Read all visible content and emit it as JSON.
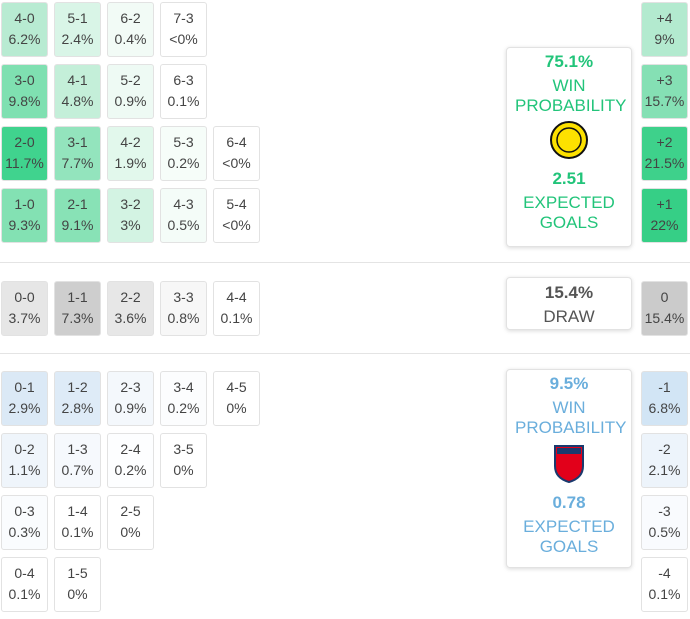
{
  "home": {
    "rows": [
      [
        {
          "score": "4-0",
          "prob": "6.2%",
          "color": "#b8ebd2"
        },
        {
          "score": "5-1",
          "prob": "2.4%",
          "color": "#d9f5e7"
        },
        {
          "score": "6-2",
          "prob": "0.4%",
          "color": "#f2fbf6"
        },
        {
          "score": "7-3",
          "prob": "<0%",
          "color": "#ffffff"
        }
      ],
      [
        {
          "score": "3-0",
          "prob": "9.8%",
          "color": "#7fe0b1"
        },
        {
          "score": "4-1",
          "prob": "4.8%",
          "color": "#c4efd9"
        },
        {
          "score": "5-2",
          "prob": "0.9%",
          "color": "#eefaf4"
        },
        {
          "score": "6-3",
          "prob": "0.1%",
          "color": "#ffffff"
        }
      ],
      [
        {
          "score": "2-0",
          "prob": "11.7%",
          "color": "#40d38e"
        },
        {
          "score": "3-1",
          "prob": "7.7%",
          "color": "#93e4bd"
        },
        {
          "score": "4-2",
          "prob": "1.9%",
          "color": "#e2f8ec"
        },
        {
          "score": "5-3",
          "prob": "0.2%",
          "color": "#f6fdf9"
        },
        {
          "score": "6-4",
          "prob": "<0%",
          "color": "#ffffff"
        }
      ],
      [
        {
          "score": "1-0",
          "prob": "9.3%",
          "color": "#83e1b3"
        },
        {
          "score": "2-1",
          "prob": "9.1%",
          "color": "#88e2b6"
        },
        {
          "score": "3-2",
          "prob": "3%",
          "color": "#d3f3e3"
        },
        {
          "score": "4-3",
          "prob": "0.5%",
          "color": "#f4fcf8"
        },
        {
          "score": "5-4",
          "prob": "<0%",
          "color": "#ffffff"
        }
      ]
    ],
    "margins": [
      {
        "label": "+4",
        "prob": "9%",
        "color": "#b3eacf"
      },
      {
        "label": "+3",
        "prob": "15.7%",
        "color": "#85e0b4"
      },
      {
        "label": "+2",
        "prob": "21.5%",
        "color": "#3ed18b"
      },
      {
        "label": "+1",
        "prob": "22%",
        "color": "#36cf86"
      }
    ],
    "summary": {
      "win_pct": "75.1%",
      "win_label": "WIN PROBABILITY",
      "xg": "2.51",
      "xg_label": "EXPECTED GOALS",
      "color": "#22c47a"
    }
  },
  "draw": {
    "rows": [
      [
        {
          "score": "0-0",
          "prob": "3.7%",
          "color": "#e6e6e6"
        },
        {
          "score": "1-1",
          "prob": "7.3%",
          "color": "#cecece"
        },
        {
          "score": "2-2",
          "prob": "3.6%",
          "color": "#e7e7e7"
        },
        {
          "score": "3-3",
          "prob": "0.8%",
          "color": "#f7f7f7"
        },
        {
          "score": "4-4",
          "prob": "0.1%",
          "color": "#ffffff"
        }
      ]
    ],
    "margins": [
      {
        "label": "0",
        "prob": "15.4%",
        "color": "#cbcbcb"
      }
    ],
    "summary": {
      "pct": "15.4%",
      "label": "DRAW"
    }
  },
  "away": {
    "rows": [
      [
        {
          "score": "0-1",
          "prob": "2.9%",
          "color": "#dbe9f6"
        },
        {
          "score": "1-2",
          "prob": "2.8%",
          "color": "#deebf7"
        },
        {
          "score": "2-3",
          "prob": "0.9%",
          "color": "#f4f8fc"
        },
        {
          "score": "3-4",
          "prob": "0.2%",
          "color": "#fcfdfe"
        },
        {
          "score": "4-5",
          "prob": "0%",
          "color": "#ffffff"
        }
      ],
      [
        {
          "score": "0-2",
          "prob": "1.1%",
          "color": "#eff5fb"
        },
        {
          "score": "1-3",
          "prob": "0.7%",
          "color": "#f6f9fd"
        },
        {
          "score": "2-4",
          "prob": "0.2%",
          "color": "#fdfeff"
        },
        {
          "score": "3-5",
          "prob": "0%",
          "color": "#ffffff"
        }
      ],
      [
        {
          "score": "0-3",
          "prob": "0.3%",
          "color": "#fafcfe"
        },
        {
          "score": "1-4",
          "prob": "0.1%",
          "color": "#ffffff"
        },
        {
          "score": "2-5",
          "prob": "0%",
          "color": "#ffffff"
        }
      ],
      [
        {
          "score": "0-4",
          "prob": "0.1%",
          "color": "#ffffff"
        },
        {
          "score": "1-5",
          "prob": "0%",
          "color": "#ffffff"
        }
      ]
    ],
    "margins": [
      {
        "label": "-1",
        "prob": "6.8%",
        "color": "#d2e5f5"
      },
      {
        "label": "-2",
        "prob": "2.1%",
        "color": "#edf4fb"
      },
      {
        "label": "-3",
        "prob": "0.5%",
        "color": "#f9fbfe"
      },
      {
        "label": "-4",
        "prob": "0.1%",
        "color": "#ffffff"
      }
    ],
    "summary": {
      "win_pct": "9.5%",
      "win_label": "WIN PROBABILITY",
      "xg": "0.78",
      "xg_label": "EXPECTED GOALS",
      "color": "#6aaedc"
    }
  }
}
